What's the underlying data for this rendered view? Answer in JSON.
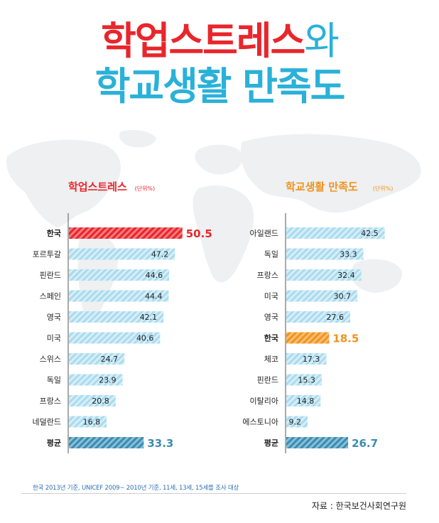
{
  "title": {
    "line1_main": "학업스트레스",
    "line1_suffix": "와",
    "line2": "학교생활 만족도"
  },
  "colors": {
    "stress_title": "#e8262c",
    "satisfaction_title": "#f0931d",
    "korea_stress": "#e8262c",
    "korea_satisfaction": "#f0931d",
    "bar_stripe_light": "#c5e6f3",
    "bar_stripe_mid": "#8fcde6",
    "average": "#3c8cb0"
  },
  "chart_data": [
    {
      "type": "bar",
      "orientation": "horizontal",
      "title": "학업스트레스",
      "unit": "(단위%)",
      "categories": [
        "한국",
        "포르투갈",
        "핀란드",
        "스페인",
        "영국",
        "미국",
        "스위스",
        "독일",
        "프랑스",
        "네덜란드",
        "평균"
      ],
      "values": [
        50.5,
        47.2,
        44.6,
        44.4,
        42.1,
        40.6,
        24.7,
        23.9,
        20.8,
        16.8,
        33.3
      ],
      "highlight": "한국",
      "average_label": "평균",
      "xlim": [
        0,
        55
      ]
    },
    {
      "type": "bar",
      "orientation": "horizontal",
      "title": "학교생활 만족도",
      "unit": "(단위%)",
      "categories": [
        "아일랜드",
        "독일",
        "프랑스",
        "미국",
        "영국",
        "한국",
        "체코",
        "핀란드",
        "이탈리아",
        "에스토니아",
        "평균"
      ],
      "values": [
        42.5,
        33.3,
        32.4,
        30.7,
        27.6,
        18.5,
        17.3,
        15.3,
        14.8,
        9.2,
        26.7
      ],
      "highlight": "한국",
      "average_label": "평균",
      "xlim": [
        0,
        46
      ]
    }
  ],
  "footnote": "한국 2013년 기준, UNICEF 2009~ 2010년 기준, 11세, 13세, 15세를 조사 대상",
  "source": "자료 : 한국보건사회연구원"
}
